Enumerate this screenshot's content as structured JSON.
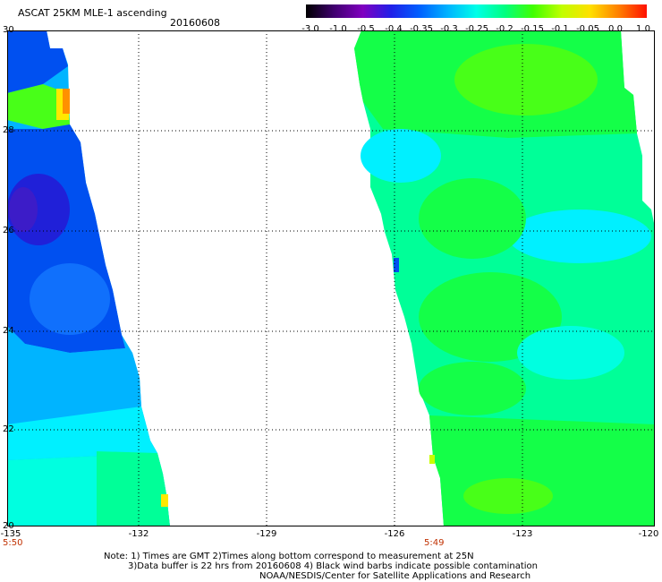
{
  "header": {
    "title": "ASCAT 25KM MLE-1 ascending",
    "date": "20160608"
  },
  "colorbar": {
    "labels": [
      "-3.0",
      "-1.0",
      "-0.5",
      "-0.4",
      "-0.35",
      "-0.3",
      "-0.25",
      "-0.2",
      "-0.15",
      "-0.1",
      "-0.05",
      "0.0",
      "1.0"
    ],
    "colors": [
      "#000000",
      "#400070",
      "#8000c0",
      "#2020e8",
      "#0060ff",
      "#00b4ff",
      "#00ffe8",
      "#00ff80",
      "#40ff00",
      "#c0ff00",
      "#ffe000",
      "#ff8000",
      "#ff1000"
    ]
  },
  "axes": {
    "y_labels": [
      "30",
      "28",
      "26",
      "24",
      "22",
      "20"
    ],
    "x_labels": [
      "-135",
      "-132",
      "-129",
      "-126",
      "-123",
      "-120"
    ]
  },
  "swath_times": [
    "5:50",
    "5:49"
  ],
  "notes": {
    "line1": "Note: 1) Times are GMT 2)Times along bottom correspond to measurement at 25N",
    "line2": "3)Data buffer is 22 hrs from 20160608 4) Black wind barbs indicate possible contamination",
    "line3": "NOAA/NESDIS/Center for Satellite Applications and Research"
  }
}
